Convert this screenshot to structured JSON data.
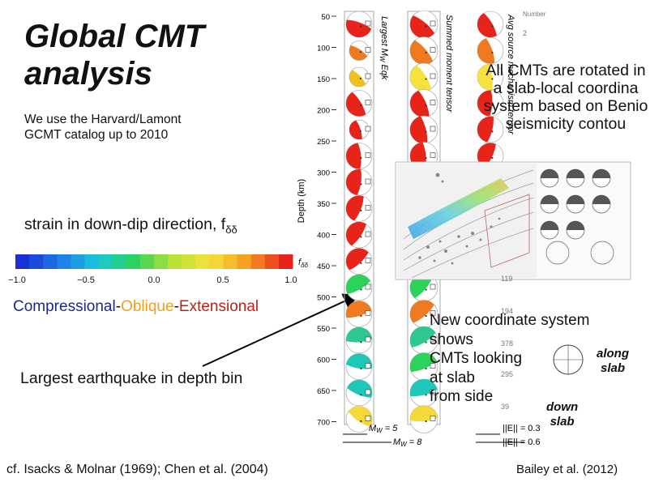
{
  "title_line1": "Global CMT",
  "title_line2": "analysis",
  "subtitle_line1": "We use the Harvard/Lamont",
  "subtitle_line2": "GCMT catalog up to 2010",
  "strain_label_prefix": "strain in down-dip direction, f",
  "strain_label_sub": "δδ",
  "colorbar": {
    "ticks": [
      "−1.0",
      "−0.5",
      "0.0",
      "0.5",
      "1.0"
    ],
    "colors": [
      "#1a2fd6",
      "#1e7be8",
      "#19c8d8",
      "#2cd35a",
      "#b8e038",
      "#f5e23a",
      "#f59a1f",
      "#e8241a"
    ],
    "cb_label": "f",
    "cb_label_sub": "δδ"
  },
  "regime": {
    "compressional": "Compressional",
    "dash1": "-",
    "oblique": "Oblique",
    "dash2": "-",
    "extensional": "Extensional",
    "compressional_color": "#1a2a8c",
    "oblique_color": "#f0a020",
    "extensional_color": "#c0201a"
  },
  "largest_label": "Largest earthquake in depth bin",
  "citation_left": "cf. Isacks & Molnar (1969); Chen et al. (2004)",
  "citation_right": "Bailey et al. (2012)",
  "depth_axis": {
    "label": "Depth (km)",
    "ticks": [
      "50",
      "100",
      "150",
      "200",
      "250",
      "300",
      "350",
      "400",
      "450",
      "500",
      "550",
      "600",
      "650",
      "700"
    ]
  },
  "column_headers": {
    "col1": "Largest M",
    "col1_sub": "W",
    "col1_suffix": " Eqk",
    "col2": "Summed moment tensor",
    "col3": "Avg source mechanism tensor",
    "col4": "Number"
  },
  "counts": [
    "119",
    "194",
    "378",
    "295",
    "39"
  ],
  "count_partial": "2",
  "scale": {
    "mw5": "M",
    "mw5_sub": "W",
    "mw5_val": " = 5",
    "mw8_val": " = 8",
    "e1": "||E|| = 0.3",
    "e2": "||E|| = 0.6"
  },
  "right_text": [
    "All CMTs are rotated in",
    "a slab-local coordina",
    "system based on Benio",
    "seismicity contou"
  ],
  "new_coord": [
    "New coordinate system",
    "shows",
    "CMTs looking",
    "at slab",
    "from side"
  ],
  "along_slab": [
    "along",
    "slab"
  ],
  "down_slab": [
    "down",
    "slab"
  ]
}
